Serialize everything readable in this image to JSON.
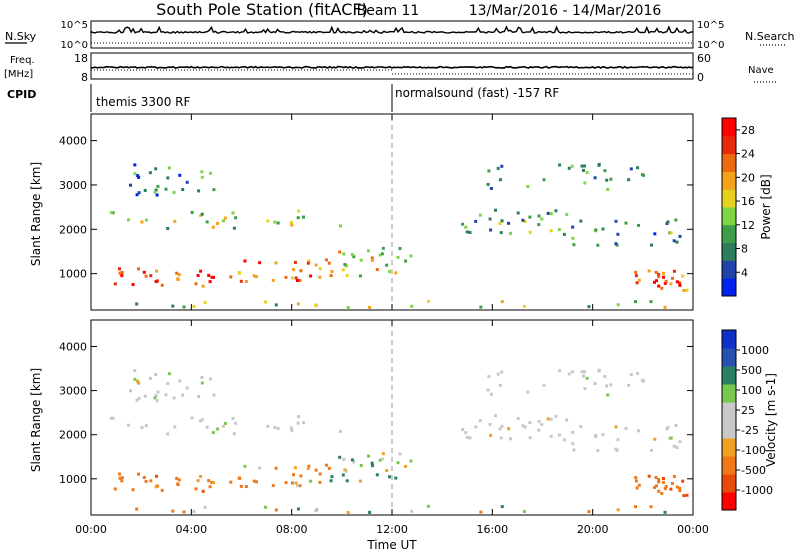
{
  "header": {
    "station": "South Pole Station (fitACF)",
    "beam": "Beam 11",
    "dates": "13/Mar/2016 - 14/Mar/2016"
  },
  "strips": {
    "nsky_label": "N.Sky",
    "nsky_ticks": [
      "10^5",
      "10^0"
    ],
    "nsearch_label": "N.Search",
    "nsearch_ticks": [
      "10^5",
      "10^0"
    ],
    "freq_label_top": "Freq.",
    "freq_label_bottom": "[MHz]",
    "freq_ticks": [
      "18",
      "8"
    ],
    "nave_label": "Nave",
    "nave_ticks": [
      "60",
      "0"
    ],
    "cpid_label": "CPID",
    "cpid_segments": [
      {
        "label": "themis 3300 RF",
        "start_hour": 0
      },
      {
        "label": "normalsound (fast) -157 RF",
        "start_hour": 12
      }
    ]
  },
  "colors": {
    "power": [
      "#0022ee",
      "#2244aa",
      "#2e7d5a",
      "#3c9e4a",
      "#7fd642",
      "#e6d21c",
      "#f3a21a",
      "#ee6a10",
      "#e82a0c",
      "#ff0000"
    ],
    "velocity": [
      "#ff0000",
      "#e84a0c",
      "#f07818",
      "#f0a020",
      "#c8c8c8",
      "#c8c8c8",
      "#78c850",
      "#2a8060",
      "#2850b0",
      "#1030c8"
    ]
  },
  "chart_data": [
    {
      "type": "heatmap",
      "name": "power",
      "ylabel": "Slant Range [km]",
      "xlim_hours": [
        0,
        24
      ],
      "ylim": [
        180,
        4600
      ],
      "yticks": [
        1000,
        2000,
        3000,
        4000
      ],
      "colorbar_label": "Power [dB]",
      "colorbar_ticks": [
        "28",
        "24",
        "20",
        "16",
        "12",
        "8",
        "4"
      ],
      "colorbar_range": [
        0,
        30
      ],
      "bands": [
        {
          "t": [
            0.7,
            5
          ],
          "r": [
            750,
            1150
          ],
          "v": 25
        },
        {
          "t": [
            5,
            9.5
          ],
          "r": [
            750,
            1350
          ],
          "v": 22
        },
        {
          "t": [
            9.5,
            12.7
          ],
          "r": [
            950,
            1700
          ],
          "v": 16
        },
        {
          "t": [
            0.5,
            10
          ],
          "r": [
            2050,
            2450
          ],
          "v": 14
        },
        {
          "t": [
            1.5,
            5
          ],
          "r": [
            2800,
            3500
          ],
          "v": 7
        },
        {
          "t": [
            14.7,
            19
          ],
          "r": [
            1900,
            2500
          ],
          "v": 11
        },
        {
          "t": [
            18,
            23.7
          ],
          "r": [
            1600,
            2400
          ],
          "v": 9
        },
        {
          "t": [
            15.5,
            22
          ],
          "r": [
            2800,
            3500
          ],
          "v": 8
        },
        {
          "t": [
            21.5,
            23.9
          ],
          "r": [
            650,
            1100
          ],
          "v": 24
        },
        {
          "t": [
            0,
            24
          ],
          "r": [
            200,
            420
          ],
          "v": 13
        }
      ]
    },
    {
      "type": "heatmap",
      "name": "velocity",
      "xlabel": "Time UT",
      "ylabel": "Slant Range [km]",
      "xlim_hours": [
        0,
        24
      ],
      "xticks": [
        "00:00",
        "04:00",
        "08:00",
        "12:00",
        "16:00",
        "20:00",
        "00:00"
      ],
      "ylim": [
        180,
        4600
      ],
      "yticks": [
        1000,
        2000,
        3000,
        4000
      ],
      "colorbar_label": "Velocity [m s-1]",
      "colorbar_ticks": [
        "1000",
        "500",
        "100",
        "25",
        "-25",
        "-100",
        "-500",
        "-1000"
      ],
      "bands": [
        {
          "t": [
            0.7,
            5
          ],
          "r": [
            750,
            1500
          ],
          "v": -300
        },
        {
          "t": [
            5,
            9.5
          ],
          "r": [
            750,
            1600
          ],
          "v": -200
        },
        {
          "t": [
            9.5,
            12.7
          ],
          "r": [
            950,
            1700
          ],
          "v": 150
        },
        {
          "t": [
            0.5,
            10
          ],
          "r": [
            2000,
            2500
          ],
          "v": 0
        },
        {
          "t": [
            1.5,
            5
          ],
          "r": [
            2800,
            3500
          ],
          "v": 0
        },
        {
          "t": [
            14.7,
            19
          ],
          "r": [
            1900,
            2600
          ],
          "v": 0
        },
        {
          "t": [
            18,
            23.7
          ],
          "r": [
            1600,
            2400
          ],
          "v": 0
        },
        {
          "t": [
            15.5,
            22
          ],
          "r": [
            2800,
            3500
          ],
          "v": 0
        },
        {
          "t": [
            21.5,
            23.9
          ],
          "r": [
            650,
            1250
          ],
          "v": -350
        },
        {
          "t": [
            0,
            24
          ],
          "r": [
            200,
            420
          ],
          "v": -60
        }
      ]
    }
  ]
}
